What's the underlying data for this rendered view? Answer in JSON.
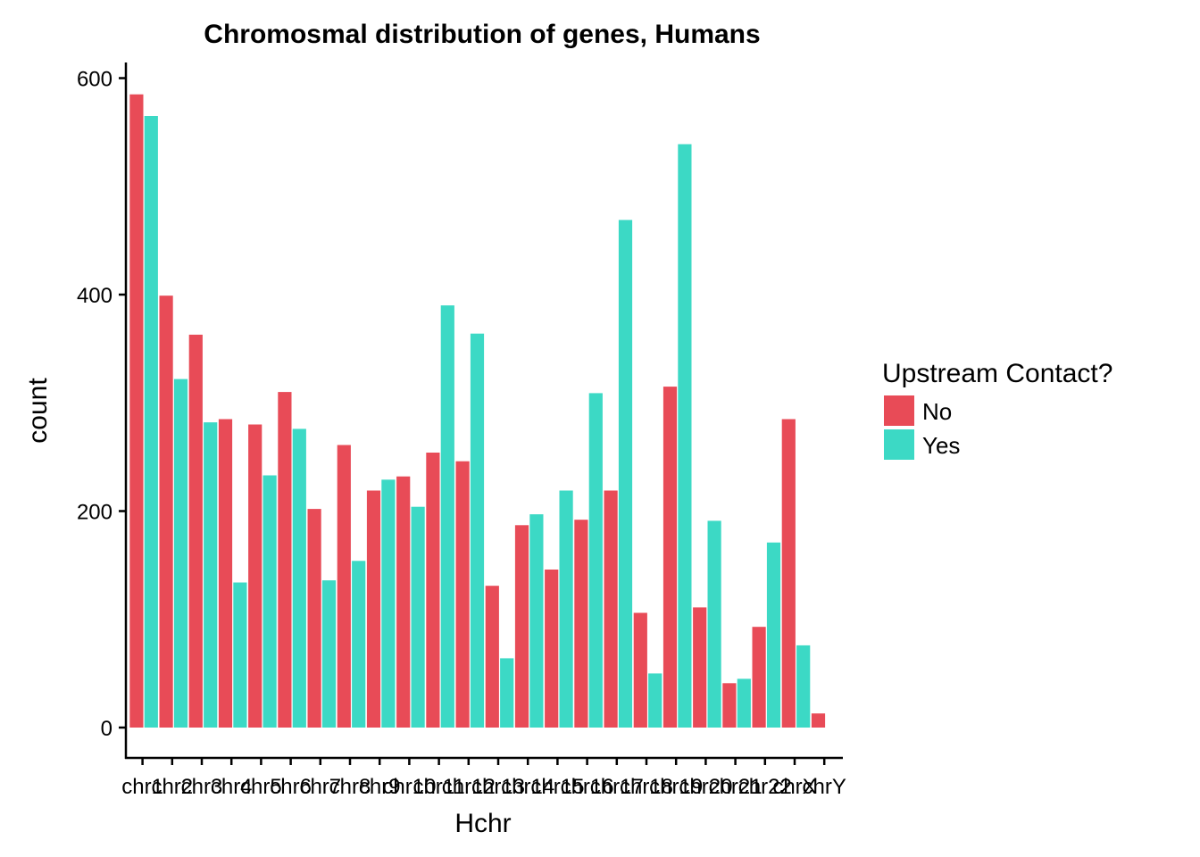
{
  "chart_data": {
    "type": "bar",
    "title": "Chromosmal distribution of genes, Humans",
    "xlabel": "Hchr",
    "ylabel": "count",
    "categories": [
      "chr1",
      "chr2",
      "chr3",
      "chr4",
      "chr5",
      "chr6",
      "chr7",
      "chr8",
      "chr9",
      "chr10",
      "chr11",
      "chr12",
      "chr13",
      "chr14",
      "chr15",
      "chr16",
      "chr17",
      "chr18",
      "chr19",
      "chr20",
      "chr21",
      "chr22",
      "chrX",
      "chrY"
    ],
    "series": [
      {
        "name": "No",
        "color": "#E84B57",
        "values": [
          585,
          399,
          363,
          285,
          280,
          310,
          202,
          261,
          219,
          232,
          254,
          246,
          131,
          187,
          146,
          192,
          219,
          106,
          315,
          111,
          41,
          93,
          285,
          13
        ]
      },
      {
        "name": "Yes",
        "color": "#3CD9C5",
        "values": [
          565,
          322,
          282,
          134,
          233,
          276,
          136,
          154,
          229,
          204,
          390,
          364,
          64,
          197,
          219,
          309,
          469,
          50,
          539,
          191,
          45,
          171,
          76,
          0
        ]
      }
    ],
    "ylim": [
      0,
      610
    ],
    "yticks": [
      0,
      200,
      400,
      600
    ],
    "grid": false,
    "legend": {
      "title": "Upstream Contact?",
      "position": "right"
    }
  }
}
